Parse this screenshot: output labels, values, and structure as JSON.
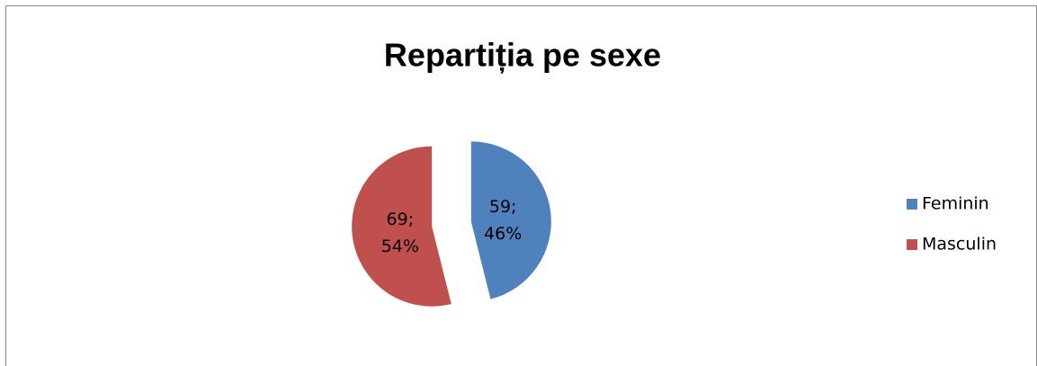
{
  "chart_data": {
    "type": "pie",
    "title": "Repartiția pe sexe",
    "categories": [
      "Feminin",
      "Masculin"
    ],
    "values": [
      59,
      69
    ],
    "value_labels": [
      "59; 46%",
      "69; 54%"
    ],
    "colors": [
      "#4f81bd",
      "#c0504d"
    ],
    "legend": "right"
  }
}
